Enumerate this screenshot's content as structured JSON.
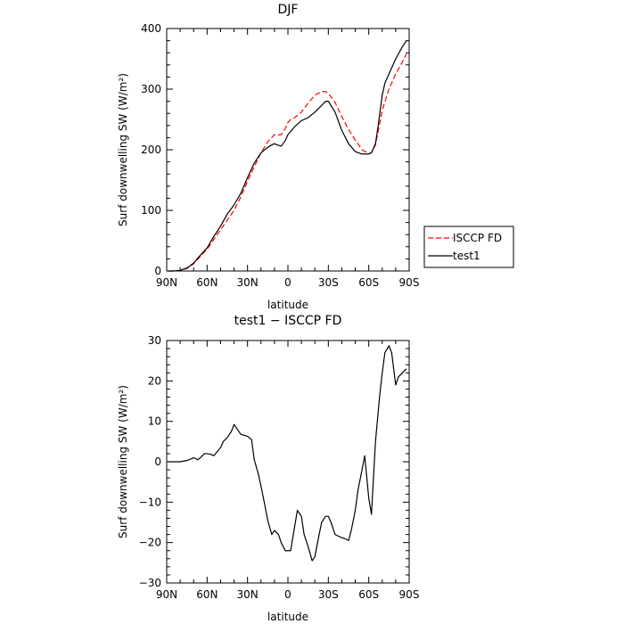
{
  "chart_data": [
    {
      "type": "line",
      "title": "DJF",
      "xlabel": "latitude",
      "ylabel": "Surf downwelling SW (W/m²)",
      "xlim": [
        90,
        -90
      ],
      "ylim": [
        0,
        400
      ],
      "xticks": [
        90,
        60,
        30,
        0,
        -30,
        -60,
        -90
      ],
      "xtick_labels": [
        "90N",
        "60N",
        "30N",
        "0",
        "30S",
        "60S",
        "90S"
      ],
      "yticks": [
        0,
        100,
        200,
        300,
        400
      ],
      "ytick_labels": [
        "0",
        "100",
        "200",
        "300",
        "400"
      ],
      "legend_position": "right, outside the plot",
      "series": [
        {
          "name": "ISCCP FD",
          "color": "#ff0000",
          "style": "dashed",
          "x": [
            89,
            85,
            80,
            75,
            70,
            65,
            60,
            55,
            50,
            45,
            40,
            35,
            30,
            25,
            20,
            15,
            10,
            8,
            5,
            2,
            0,
            -2,
            -5,
            -10,
            -15,
            -20,
            -25,
            -28,
            -30,
            -35,
            -40,
            -45,
            -50,
            -55,
            -60,
            -62,
            -65,
            -70,
            -75,
            -80,
            -85,
            -88
          ],
          "y": [
            0,
            0,
            1,
            4,
            12,
            24,
            36,
            52,
            68,
            84,
            100,
            122,
            148,
            172,
            195,
            213,
            225,
            224,
            225,
            235,
            245,
            250,
            253,
            262,
            277,
            290,
            296,
            296,
            293,
            278,
            255,
            233,
            216,
            200,
            194,
            195,
            208,
            265,
            300,
            325,
            345,
            358
          ]
        },
        {
          "name": "test1",
          "color": "#000000",
          "style": "solid",
          "x": [
            89,
            85,
            80,
            75,
            70,
            65,
            60,
            55,
            50,
            45,
            40,
            35,
            30,
            25,
            20,
            15,
            12,
            10,
            8,
            5,
            2,
            0,
            -2,
            -5,
            -10,
            -15,
            -20,
            -25,
            -28,
            -30,
            -35,
            -40,
            -45,
            -50,
            -55,
            -60,
            -62,
            -65,
            -67,
            -70,
            -72,
            -75,
            -80,
            -85,
            -88
          ],
          "y": [
            0,
            0,
            1,
            5,
            13,
            26,
            38,
            57,
            74,
            94,
            109,
            128,
            154,
            178,
            195,
            204,
            208,
            210,
            208,
            206,
            215,
            225,
            230,
            238,
            248,
            253,
            262,
            273,
            280,
            280,
            262,
            232,
            210,
            197,
            193,
            193,
            195,
            210,
            240,
            290,
            310,
            325,
            350,
            370,
            380
          ]
        }
      ]
    },
    {
      "type": "line",
      "title": "test1 − ISCCP FD",
      "xlabel": "latitude",
      "ylabel": "Surf downwelling SW (W/m²)",
      "xlim": [
        90,
        -90
      ],
      "ylim": [
        -30,
        30
      ],
      "xticks": [
        90,
        60,
        30,
        0,
        -30,
        -60,
        -90
      ],
      "xtick_labels": [
        "90N",
        "60N",
        "30N",
        "0",
        "30S",
        "60S",
        "90S"
      ],
      "yticks": [
        -30,
        -20,
        -10,
        0,
        10,
        20,
        30
      ],
      "ytick_labels": [
        "−30",
        "−20",
        "−10",
        "0",
        "10",
        "20",
        "30"
      ],
      "series": [
        {
          "color": "#000000",
          "style": "solid",
          "x": [
            89,
            80,
            75,
            72,
            70,
            67,
            65,
            62,
            60,
            57,
            55,
            50,
            48,
            45,
            42,
            40,
            35,
            32,
            30,
            27,
            25,
            22,
            20,
            17,
            15,
            12,
            10,
            7,
            5,
            2,
            0,
            -2,
            -5,
            -7,
            -10,
            -12,
            -15,
            -18,
            -20,
            -22,
            -25,
            -28,
            -30,
            -32,
            -35,
            -38,
            -42,
            -45,
            -47,
            -50,
            -52,
            -55,
            -57,
            -60,
            -62,
            -65,
            -68,
            -70,
            -72,
            -75,
            -77,
            -80,
            -82,
            -85,
            -88
          ],
          "y": [
            0,
            0,
            0.3,
            0.7,
            1,
            0.5,
            1,
            2,
            2,
            1.8,
            1.5,
            3.5,
            5,
            6,
            7.5,
            9.2,
            6.8,
            6.5,
            6.3,
            5.5,
            0.5,
            -3,
            -6,
            -11,
            -14.5,
            -18,
            -17,
            -18,
            -20,
            -22,
            -22,
            -22,
            -16,
            -12,
            -13.5,
            -18,
            -21,
            -24.5,
            -23.5,
            -20,
            -15,
            -13.5,
            -13.5,
            -15,
            -18,
            -18.5,
            -19,
            -19.5,
            -17,
            -12,
            -7,
            -2,
            1.5,
            -9,
            -13,
            5,
            16,
            22,
            27,
            28.7,
            27,
            19,
            21,
            22,
            23
          ]
        }
      ]
    }
  ]
}
